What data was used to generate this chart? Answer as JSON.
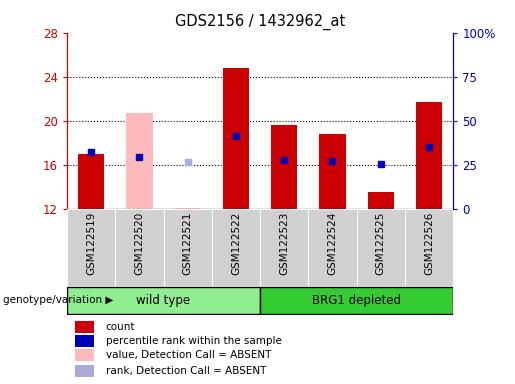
{
  "title": "GDS2156 / 1432962_at",
  "samples": [
    "GSM122519",
    "GSM122520",
    "GSM122521",
    "GSM122522",
    "GSM122523",
    "GSM122524",
    "GSM122525",
    "GSM122526"
  ],
  "groups": [
    {
      "label": "wild type",
      "indices": [
        0,
        1,
        2,
        3
      ],
      "color": "#90ee90"
    },
    {
      "label": "BRG1 depleted",
      "indices": [
        4,
        5,
        6,
        7
      ],
      "color": "#33cc33"
    }
  ],
  "ylim_left": [
    12,
    28
  ],
  "ylim_right": [
    0,
    100
  ],
  "yticks_left": [
    12,
    16,
    20,
    24,
    28
  ],
  "yticks_right": [
    0,
    25,
    50,
    75,
    100
  ],
  "ytick_labels_right": [
    "0",
    "25",
    "50",
    "75",
    "100%"
  ],
  "red_bars_absent": [
    false,
    true,
    true,
    false,
    false,
    false,
    false,
    false
  ],
  "red_bar_values": [
    17.0,
    20.7,
    12.1,
    24.8,
    19.6,
    18.8,
    13.6,
    21.7
  ],
  "bar_bottom": 12,
  "blue_dot_absent": [
    false,
    false,
    true,
    false,
    false,
    false,
    false,
    false
  ],
  "blue_dot_y": [
    17.2,
    16.7,
    16.3,
    18.6,
    16.5,
    16.4,
    16.1,
    17.6
  ],
  "red_bar_color": "#cc0000",
  "red_bar_absent_color": "#ffbbbb",
  "blue_dot_color": "#0000bb",
  "blue_dot_absent_color": "#aaaadd",
  "left_tick_color": "#cc0000",
  "right_tick_color": "#0000bb",
  "grid_color": "black",
  "grid_linestyle": ":",
  "grid_linewidth": 0.8,
  "yticks_grid": [
    16,
    20,
    24
  ],
  "bar_width": 0.55,
  "legend_items": [
    {
      "label": "count",
      "color": "#cc0000"
    },
    {
      "label": "percentile rank within the sample",
      "color": "#0000bb"
    },
    {
      "label": "value, Detection Call = ABSENT",
      "color": "#ffbbbb"
    },
    {
      "label": "rank, Detection Call = ABSENT",
      "color": "#aaaadd"
    }
  ]
}
